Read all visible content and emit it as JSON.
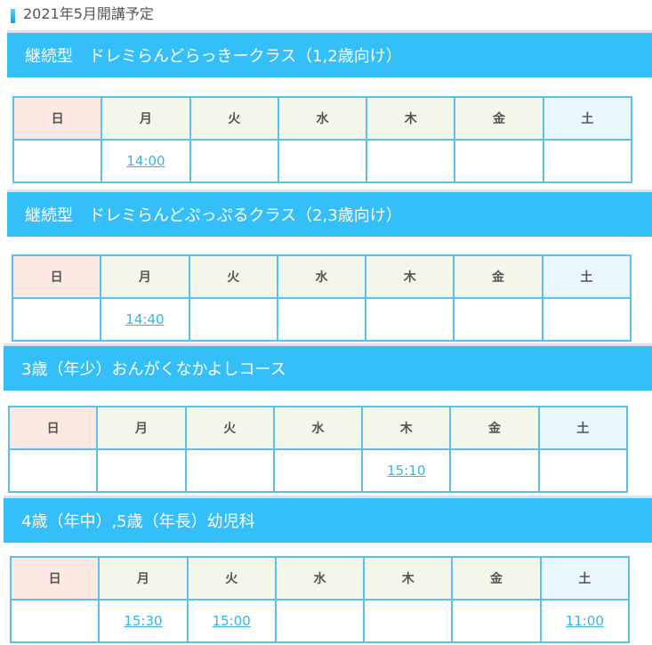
{
  "page_title": "2021年5月開講予定",
  "days": [
    "日",
    "月",
    "火",
    "水",
    "木",
    "金",
    "土"
  ],
  "colors": {
    "banner": "#35bff8",
    "border": "#5bc0eb",
    "sunday": "#fde8e2",
    "weekday": "#f2f7ea",
    "saturday": "#eaf8fd",
    "link": "#3ab4e0"
  },
  "sections": [
    {
      "title": "継続型　ドレミらんどらっきークラス（1,2歳向け）",
      "times": [
        "",
        "14:00",
        "",
        "",
        "",
        "",
        ""
      ]
    },
    {
      "title": "継続型　ドレミらんどぷっぷるクラス（2,3歳向け）",
      "times": [
        "",
        "14:40",
        "",
        "",
        "",
        "",
        ""
      ]
    },
    {
      "title": "3歳（年少）おんがくなかよしコース",
      "times": [
        "",
        "",
        "",
        "",
        "15:10",
        "",
        ""
      ]
    },
    {
      "title": "4歳（年中）,5歳（年長）幼児科",
      "times": [
        "",
        "15:30",
        "15:00",
        "",
        "",
        "",
        "11:00"
      ]
    }
  ]
}
